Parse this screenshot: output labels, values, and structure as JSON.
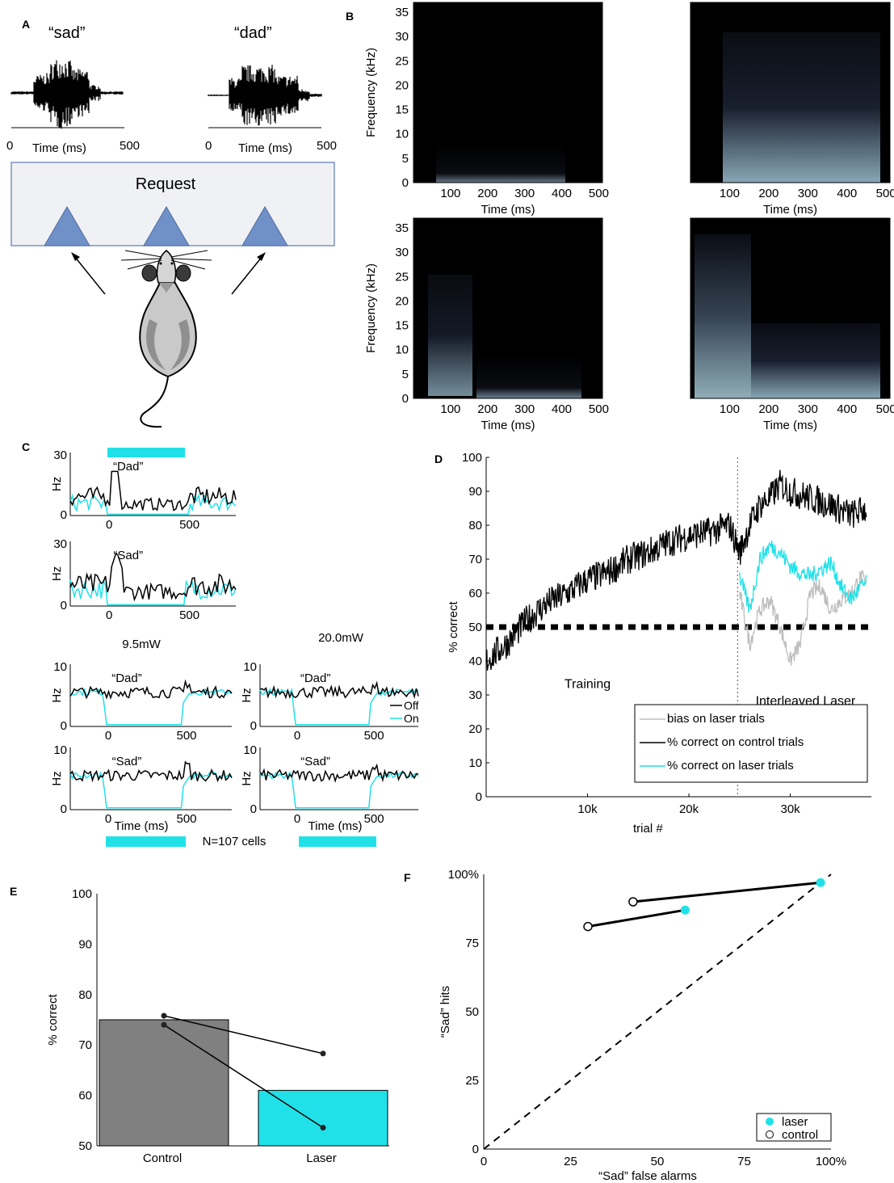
{
  "panel_labels": {
    "a": "A",
    "b": "B",
    "c": "C",
    "d": "D",
    "e": "E",
    "f": "F"
  },
  "panelA": {
    "word1": "“sad”",
    "word2": "“dad”",
    "x0": "0",
    "x1": "500",
    "xlabel": "Time (ms)",
    "box": "Request"
  },
  "panelB": {
    "ylabel": "Frequency (kHz)",
    "yticks": [
      "0",
      "5",
      "10",
      "15",
      "20",
      "25",
      "30",
      "35"
    ],
    "xticks": [
      "100",
      "200",
      "300",
      "400",
      "500"
    ],
    "xlabel": "Time (ms)"
  },
  "panelC": {
    "top_ytick": "30",
    "ytick0": "0",
    "ylabel": "Hz",
    "xt0": "0",
    "xt500": "500",
    "dad": "“Dad”",
    "sad": "“Sad”",
    "p1": "9.5mW",
    "p2": "20.0mW",
    "bot_ytick": "10",
    "legend_off": "Off",
    "legend_on": "On",
    "xlabel": "Time (ms)",
    "n": "N=107 cells"
  },
  "chart_data": [
    {
      "type": "line",
      "panel": "D",
      "ylabel": "% correct",
      "xlabel": "trial #",
      "xticks": [
        "10k",
        "20k",
        "30k"
      ],
      "yticks": [
        "0",
        "10",
        "20",
        "30",
        "40",
        "50",
        "60",
        "70",
        "80",
        "90",
        "100"
      ],
      "ylim": [
        0,
        100
      ],
      "annotations": [
        "Training",
        "Interleaved Laser"
      ],
      "legend": [
        "bias on laser trials",
        "% correct on control trials",
        "% correct on laser trials"
      ],
      "series": [
        {
          "name": "% correct on control trials",
          "x": [
            0,
            2000,
            4000,
            6000,
            8000,
            10000,
            12000,
            14000,
            16000,
            18000,
            20000,
            22000,
            24000,
            25000,
            26000,
            27000,
            28000,
            29000,
            30000,
            32000,
            34000,
            36000,
            37500
          ],
          "y": [
            40,
            45,
            52,
            57,
            60,
            64,
            66,
            70,
            72,
            75,
            77,
            78,
            80,
            72,
            80,
            86,
            88,
            92,
            90,
            88,
            86,
            83,
            85
          ]
        },
        {
          "name": "% correct on laser trials",
          "x": [
            25000,
            26000,
            27000,
            28000,
            29000,
            30000,
            31000,
            32000,
            33000,
            34000,
            35000,
            36000,
            37000,
            37500
          ],
          "y": [
            65,
            55,
            70,
            74,
            72,
            68,
            66,
            65,
            67,
            69,
            62,
            58,
            62,
            63
          ]
        },
        {
          "name": "bias on laser trials",
          "x": [
            25000,
            26000,
            27000,
            28000,
            29000,
            30000,
            31000,
            32000,
            33000,
            34000,
            35000,
            36000,
            37000,
            37500
          ],
          "y": [
            60,
            45,
            55,
            58,
            50,
            40,
            45,
            60,
            62,
            55,
            58,
            60,
            65,
            62
          ]
        }
      ]
    },
    {
      "type": "bar",
      "panel": "E",
      "ylabel": "% correct",
      "categories": [
        "Control",
        "Laser"
      ],
      "values": [
        75,
        61
      ],
      "yticks": [
        "50",
        "60",
        "70",
        "80",
        "90",
        "100"
      ],
      "ylim": [
        50,
        100
      ],
      "pairs": [
        [
          75.8,
          68.3
        ],
        [
          74,
          53.6
        ]
      ]
    },
    {
      "type": "scatter",
      "panel": "F",
      "xlabel": "“Sad” false alarms",
      "ylabel": "“Sad” hits",
      "xticks": [
        "0",
        "25",
        "50",
        "75",
        "100%"
      ],
      "yticks": [
        "0",
        "25",
        "50",
        "75",
        "100%"
      ],
      "legend": [
        "laser",
        "control"
      ],
      "pairs": [
        {
          "control": [
            43,
            90
          ],
          "laser": [
            97,
            97
          ]
        },
        {
          "control": [
            30,
            81
          ],
          "laser": [
            58,
            87
          ]
        }
      ]
    }
  ]
}
